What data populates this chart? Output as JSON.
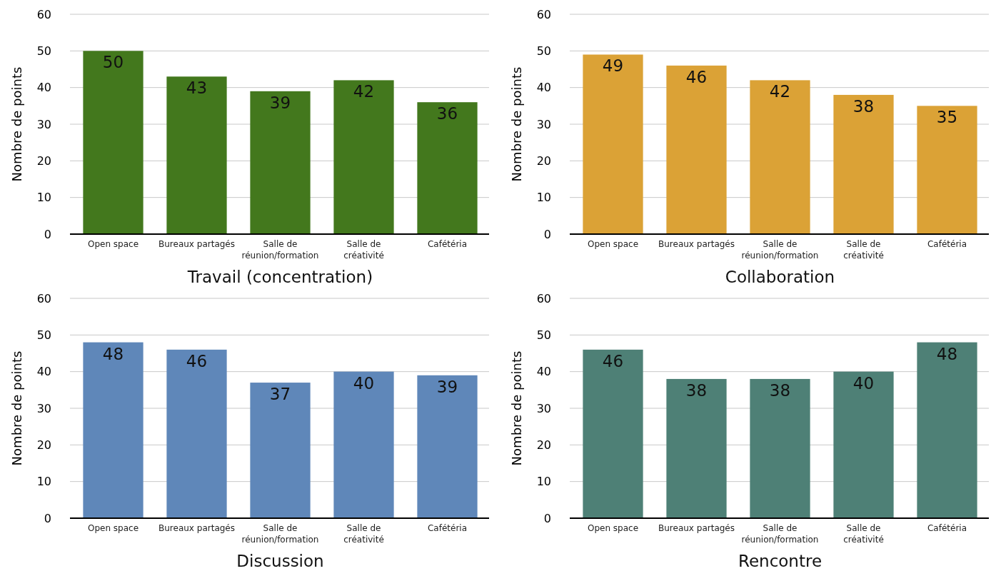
{
  "chart_data": [
    {
      "type": "bar",
      "title": "Travail (concentration)",
      "ylabel": "Nombre de points",
      "categories": [
        "Open space",
        "Bureaux partagés",
        "Salle de réunion/formation",
        "Salle de créativité",
        "Cafétéria"
      ],
      "values": [
        50,
        43,
        39,
        42,
        36
      ],
      "color": "#43781d",
      "ylim": [
        0,
        60
      ],
      "yticks": [
        0,
        10,
        20,
        30,
        40,
        50,
        60
      ],
      "grid": "y",
      "data_labels": true
    },
    {
      "type": "bar",
      "title": "Collaboration",
      "ylabel": "Nombre de points",
      "categories": [
        "Open space",
        "Bureaux partagés",
        "Salle de réunion/formation",
        "Salle de créativité",
        "Cafétéria"
      ],
      "values": [
        49,
        46,
        42,
        38,
        35
      ],
      "color": "#dba236",
      "ylim": [
        0,
        60
      ],
      "yticks": [
        0,
        10,
        20,
        30,
        40,
        50,
        60
      ],
      "grid": "y",
      "data_labels": true
    },
    {
      "type": "bar",
      "title": "Discussion",
      "ylabel": "Nombre de points",
      "categories": [
        "Open space",
        "Bureaux partagés",
        "Salle de réunion/formation",
        "Salle de créativité",
        "Cafétéria"
      ],
      "values": [
        48,
        46,
        37,
        40,
        39
      ],
      "color": "#5f87b9",
      "ylim": [
        0,
        60
      ],
      "yticks": [
        0,
        10,
        20,
        30,
        40,
        50,
        60
      ],
      "grid": "y",
      "data_labels": true
    },
    {
      "type": "bar",
      "title": "Rencontre",
      "ylabel": "Nombre de points",
      "categories": [
        "Open space",
        "Bureaux partagés",
        "Salle de réunion/formation",
        "Salle de créativité",
        "Cafétéria"
      ],
      "values": [
        46,
        38,
        38,
        40,
        48
      ],
      "color": "#4e8076",
      "ylim": [
        0,
        60
      ],
      "yticks": [
        0,
        10,
        20,
        30,
        40,
        50,
        60
      ],
      "grid": "y",
      "data_labels": true
    }
  ]
}
